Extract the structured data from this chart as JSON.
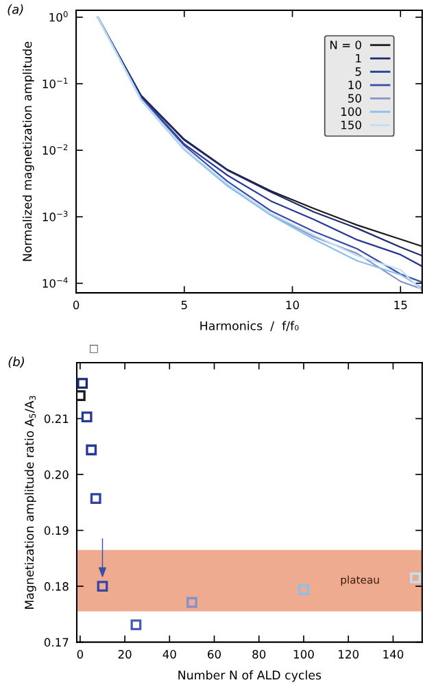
{
  "chart_data": [
    {
      "type": "line",
      "xlabel": "Harmonics  /  f/f₀",
      "ylabel": "Normalized magnetization amplitude",
      "log": "y",
      "xlim": [
        0,
        16
      ],
      "xticks": [
        0,
        5,
        10,
        15
      ],
      "ylim": [
        7.2e-05,
        1.27
      ],
      "yticks": [
        {
          "value": 1,
          "label": "10$^{0}$"
        },
        {
          "value": 0.1,
          "label": "10$^{−1}$"
        },
        {
          "value": 0.01,
          "label": "10$^{−2}$"
        },
        {
          "value": 0.001,
          "label": "10$^{−3}$"
        },
        {
          "value": 0.0001,
          "label": "10$^{−4}$"
        }
      ],
      "x": [
        1,
        3,
        5,
        7,
        9,
        11,
        13,
        15,
        16
      ],
      "legend": "top right",
      "grid": false,
      "annotations": [
        "(a)"
      ],
      "series": [
        {
          "name": "N = 0",
          "color": "#1a1a1a",
          "values": [
            1,
            0.067,
            0.0146,
            0.0051,
            0.00245,
            0.00133,
            0.00075,
            0.00046,
            0.00036
          ]
        },
        {
          "name": "1",
          "color": "#1f2a6e",
          "values": [
            1,
            0.065,
            0.0142,
            0.005,
            0.00236,
            0.00118,
            0.00067,
            0.00035,
            0.00026
          ]
        },
        {
          "name": "5",
          "color": "#26389a",
          "values": [
            1,
            0.063,
            0.0124,
            0.0042,
            0.00173,
            0.00091,
            0.00045,
            0.00027,
            0.00018
          ]
        },
        {
          "name": "10",
          "color": "#3a4da8",
          "values": [
            1,
            0.061,
            0.0118,
            0.0034,
            0.00123,
            0.0006,
            0.00033,
            0.000138,
            0.000104
          ]
        },
        {
          "name": "50",
          "color": "#8c92cc",
          "values": [
            1,
            0.059,
            0.0105,
            0.003,
            0.0011,
            0.0005,
            0.00028,
            0.000107,
            8.2e-05
          ]
        },
        {
          "name": "100",
          "color": "#8bbfe8",
          "values": [
            1,
            0.057,
            0.0102,
            0.0029,
            0.00106,
            0.00046,
            0.000218,
            0.000135,
            8.5e-05
          ]
        },
        {
          "name": "150",
          "color": "#c0dff5",
          "values": [
            1,
            0.058,
            0.0106,
            0.0031,
            0.00112,
            0.00053,
            0.00026,
            0.00016,
            7.7e-05
          ]
        }
      ]
    },
    {
      "type": "scatter",
      "xlabel": "Number N of ALD cycles",
      "ylabel": "Magnetization amplitude ratio A$_{5}$/A$_{3}$",
      "xlim": [
        -1.5,
        153
      ],
      "xticks": [
        0,
        20,
        40,
        60,
        80,
        100,
        120,
        140
      ],
      "ylim": [
        0.17,
        0.22
      ],
      "yticks": [
        0.17,
        0.18,
        0.19,
        {
          "value": 0.2,
          "label": "0.20"
        },
        0.21
      ],
      "marker": "square",
      "grid": false,
      "x": [
        0,
        1,
        3,
        5,
        7,
        10,
        25,
        50,
        100,
        150
      ],
      "values": [
        0.2141,
        0.2163,
        0.2103,
        0.2044,
        0.1957,
        0.18,
        0.1731,
        0.1771,
        0.1794,
        0.1815
      ],
      "colors": [
        "#1a1a1a",
        "#1f2a6e",
        "#26389a",
        "#26389a",
        "#2e40a0",
        "#3246a6",
        "#4a5bb5",
        "#8890cc",
        "#8bc0ea",
        "#bfe0f5"
      ],
      "bands": [
        {
          "axis": "y",
          "from": 0.1755,
          "to": 0.1865,
          "label": "plateau",
          "color": "#efab90"
        }
      ],
      "annotations": [
        "(b)",
        "□"
      ]
    }
  ]
}
